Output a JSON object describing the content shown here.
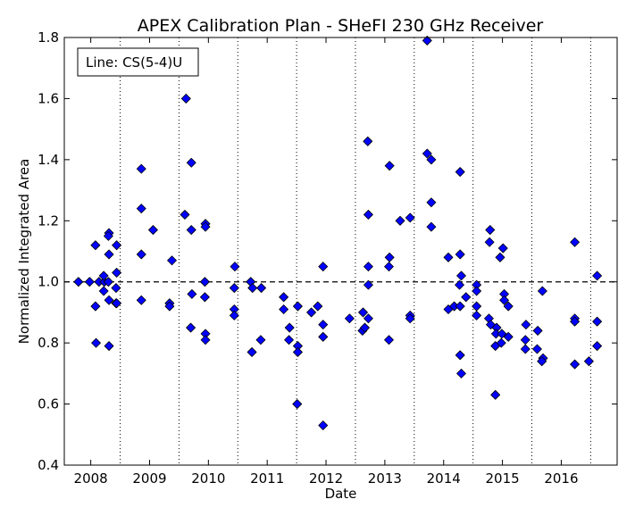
{
  "chart_data": {
    "type": "scatter",
    "title": "APEX Calibration Plan - SHeFI 230 GHz Receiver",
    "xlabel": "Date",
    "ylabel": "Normalized Integrated Area",
    "ylim": [
      0.4,
      1.8
    ],
    "xlim": [
      2007.55,
      2016.95
    ],
    "xticks": [
      "2008",
      "2009",
      "2010",
      "2011",
      "2012",
      "2013",
      "2014",
      "2015",
      "2016"
    ],
    "yticks": [
      "0.4",
      "0.6",
      "0.8",
      "1.0",
      "1.2",
      "1.4",
      "1.6",
      "1.8"
    ],
    "reference_line": 1.0,
    "dotted_vlines": [
      2008.5,
      2009.5,
      2010.5,
      2011.5,
      2012.5,
      2013.5,
      2014.5,
      2015.5,
      2016.5
    ],
    "legend": {
      "text": "Line: CS(5-4)U",
      "placement": "top-left"
    },
    "marker_color": "#0000ff",
    "series": [
      {
        "x": [
          2007.79,
          2007.98,
          2008.09,
          2008.08,
          2008.08,
          2008.14,
          2008.23,
          2008.22,
          2008.22,
          2008.31,
          2008.3,
          2008.31,
          2008.3,
          2008.31,
          2008.31,
          2008.44,
          2008.44,
          2008.43,
          2008.43,
          2008.44,
          2008.86,
          2008.86,
          2008.86,
          2008.86,
          2009.06,
          2009.34,
          2009.38,
          2009.34,
          2009.62,
          2009.6,
          2009.71,
          2009.71,
          2009.72,
          2009.7,
          2009.95,
          2009.95,
          2009.94,
          2009.94,
          2009.95,
          2009.95,
          2010.45,
          2010.44,
          2010.44,
          2010.44,
          2010.72,
          2010.75,
          2010.74,
          2010.9,
          2010.89,
          2011.28,
          2011.28,
          2011.38,
          2011.37,
          2011.52,
          2011.52,
          2011.52,
          2011.51,
          2011.75,
          2011.86,
          2011.95,
          2011.95,
          2011.95,
          2011.95,
          2012.4,
          2012.62,
          2012.66,
          2012.63,
          2012.71,
          2012.72,
          2012.72,
          2012.72,
          2012.72,
          2013.08,
          2013.08,
          2013.07,
          2013.07,
          2013.26,
          2013.43,
          2013.43,
          2013.43,
          2013.72,
          2013.72,
          2013.79,
          2013.79,
          2013.79,
          2014.08,
          2014.08,
          2014.18,
          2014.28,
          2014.28,
          2014.3,
          2014.27,
          2014.28,
          2014.28,
          2014.38,
          2014.56,
          2014.56,
          2014.56,
          2014.56,
          2014.79,
          2014.78,
          2014.77,
          2014.8,
          2014.9,
          2014.89,
          2014.88,
          2014.96,
          2014.98,
          2014.99,
          2015.01,
          2015.03,
          2015.03,
          2015.1,
          2015.1,
          2015.4,
          2015.39,
          2015.39,
          2015.6,
          2015.59,
          2015.68,
          2015.69,
          2015.67,
          2016.23,
          2016.23,
          2016.23,
          2016.23,
          2016.47,
          2016.61,
          2016.61,
          2016.61,
          2014.88,
          2014.3
        ],
        "y": [
          1.0,
          1.0,
          0.8,
          0.92,
          1.12,
          1.0,
          1.0,
          0.97,
          1.02,
          1.16,
          1.15,
          1.09,
          1.0,
          0.94,
          0.79,
          1.03,
          1.12,
          0.98,
          0.93,
          0.93,
          1.37,
          1.24,
          1.09,
          0.94,
          1.17,
          0.93,
          1.07,
          0.92,
          1.6,
          1.22,
          1.39,
          1.17,
          0.96,
          0.85,
          1.19,
          1.18,
          1.0,
          0.95,
          0.83,
          0.81,
          1.05,
          0.98,
          0.91,
          0.89,
          1.0,
          0.98,
          0.77,
          0.98,
          0.81,
          0.95,
          0.91,
          0.85,
          0.81,
          0.92,
          0.79,
          0.77,
          0.6,
          0.9,
          0.92,
          1.05,
          0.86,
          0.82,
          0.53,
          0.88,
          0.84,
          0.85,
          0.9,
          1.46,
          1.22,
          1.05,
          0.99,
          0.88,
          1.38,
          1.08,
          1.05,
          0.81,
          1.2,
          1.21,
          0.89,
          0.88,
          1.79,
          1.42,
          1.26,
          1.4,
          1.18,
          1.08,
          0.91,
          0.92,
          1.36,
          1.09,
          1.02,
          0.99,
          0.92,
          0.76,
          0.95,
          0.99,
          0.97,
          0.92,
          0.89,
          1.17,
          1.13,
          0.88,
          0.86,
          0.85,
          0.83,
          0.79,
          1.08,
          0.8,
          0.83,
          1.11,
          0.96,
          0.94,
          0.82,
          0.92,
          0.86,
          0.81,
          0.78,
          0.84,
          0.78,
          0.97,
          0.75,
          0.74,
          1.13,
          0.88,
          0.87,
          0.73,
          0.74,
          1.02,
          0.87,
          0.79,
          0.63,
          0.7
        ]
      }
    ]
  }
}
